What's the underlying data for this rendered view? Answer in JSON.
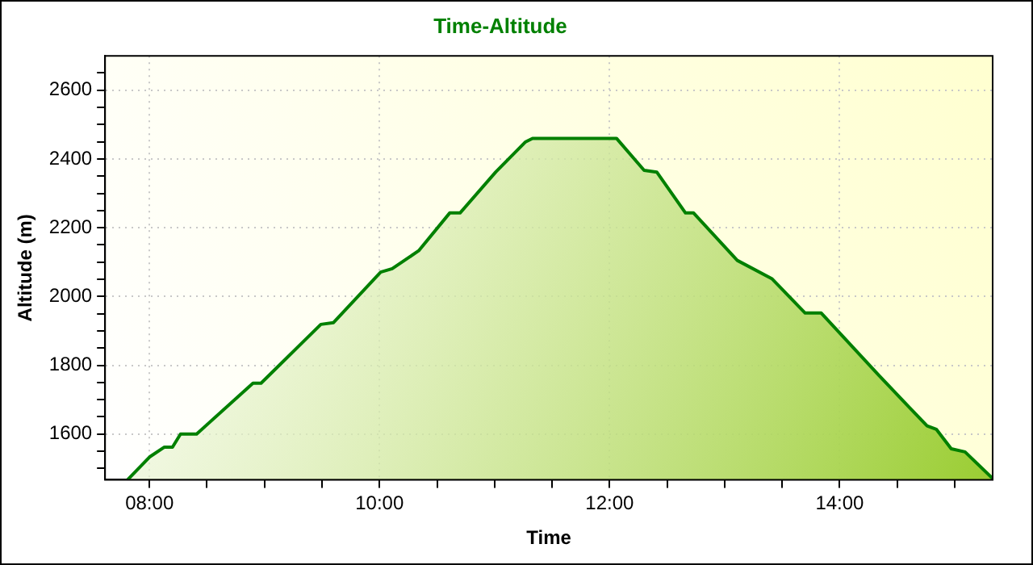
{
  "chart_data": {
    "type": "area",
    "title": "Time-Altitude",
    "xlabel": "Time",
    "ylabel": "Altitude (m)",
    "xlim": [
      7.614,
      15.33
    ],
    "ylim": [
      1467,
      2700
    ],
    "xticks": [
      {
        "value": 8,
        "label": "08:00"
      },
      {
        "value": 8.5,
        "label": null
      },
      {
        "value": 9,
        "label": null
      },
      {
        "value": 9.5,
        "label": null
      },
      {
        "value": 10,
        "label": "10:00"
      },
      {
        "value": 10.5,
        "label": null
      },
      {
        "value": 11,
        "label": null
      },
      {
        "value": 11.5,
        "label": null
      },
      {
        "value": 12,
        "label": "12:00"
      },
      {
        "value": 12.5,
        "label": null
      },
      {
        "value": 13,
        "label": null
      },
      {
        "value": 13.5,
        "label": null
      },
      {
        "value": 14,
        "label": "14:00"
      },
      {
        "value": 14.5,
        "label": null
      },
      {
        "value": 15,
        "label": null
      }
    ],
    "yticks": [
      {
        "value": 1500,
        "label": null
      },
      {
        "value": 1550,
        "label": null
      },
      1600,
      {
        "value": 1650,
        "label": null
      },
      {
        "value": 1700,
        "label": null
      },
      {
        "value": 1750,
        "label": null
      },
      1800,
      {
        "value": 1850,
        "label": null
      },
      {
        "value": 1900,
        "label": null
      },
      {
        "value": 1950,
        "label": null
      },
      2000,
      {
        "value": 2050,
        "label": null
      },
      {
        "value": 2100,
        "label": null
      },
      {
        "value": 2150,
        "label": null
      },
      2200,
      {
        "value": 2250,
        "label": null
      },
      {
        "value": 2300,
        "label": null
      },
      {
        "value": 2350,
        "label": null
      },
      2400,
      {
        "value": 2450,
        "label": null
      },
      {
        "value": 2500,
        "label": null
      },
      {
        "value": 2550,
        "label": null
      },
      2600,
      {
        "value": 2650,
        "label": null
      }
    ],
    "grid": true,
    "legend": false,
    "marker": "none",
    "line_style": "solid",
    "series": [
      {
        "color": "#008000",
        "x": [
          7.81,
          8.0,
          8.13,
          8.2,
          8.27,
          8.41,
          8.9,
          8.97,
          9.49,
          9.6,
          10.01,
          10.11,
          10.34,
          10.61,
          10.7,
          11.01,
          11.27,
          11.33,
          12.06,
          12.3,
          12.41,
          12.66,
          12.73,
          13.11,
          13.41,
          13.7,
          13.84,
          14.34,
          14.61,
          14.76,
          14.84,
          14.97,
          15.09,
          15.33
        ],
        "values": [
          1467,
          1533,
          1562,
          1562,
          1600,
          1600,
          1748,
          1748,
          1919,
          1924,
          2071,
          2081,
          2133,
          2243,
          2243,
          2362,
          2450,
          2460,
          2460,
          2367,
          2362,
          2243,
          2243,
          2105,
          2052,
          1952,
          1952,
          1771,
          1676,
          1624,
          1614,
          1557,
          1548,
          1471
        ]
      }
    ]
  }
}
